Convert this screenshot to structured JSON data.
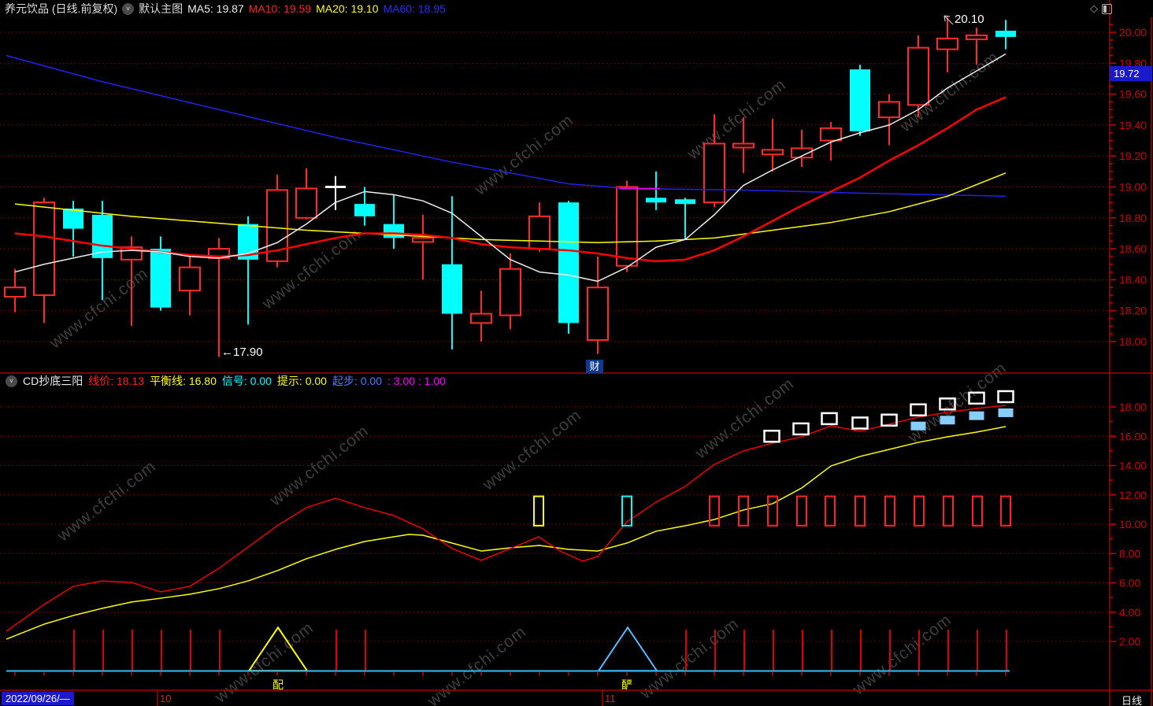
{
  "window": {
    "title": "养元饮品 (日线.前复权)",
    "overlay_label": "默认主图",
    "ma": [
      {
        "text": "MA5: 19.87",
        "color": "#eeeeee"
      },
      {
        "text": "MA10: 19.59",
        "color": "#ff2222"
      },
      {
        "text": "MA20: 19.10",
        "color": "#ffff00"
      },
      {
        "text": "MA60: 18.95",
        "color": "#2b2bff"
      }
    ],
    "icons": {
      "diamond": "◇",
      "chevron": "˅"
    }
  },
  "sub_header": {
    "indicator_name": "CD抄底三阳",
    "fields": [
      {
        "text": "线价: 18.13",
        "color": "#ff2222"
      },
      {
        "text": "平衡线: 16.80",
        "color": "#ffff00"
      },
      {
        "text": "信号: 0.00",
        "color": "#00ffff"
      },
      {
        "text": "提示: 0.00",
        "color": "#ffff00"
      },
      {
        "text": "起步: 0.00",
        "color": "#4d7dff"
      },
      {
        "text": ": 3.00 : 1.00",
        "color": "#ff00ff"
      }
    ]
  },
  "bottom_bar": {
    "date_label": "2022/09/26/—",
    "months": [
      {
        "label": "10",
        "x": 203
      },
      {
        "label": "11",
        "x": 768
      }
    ],
    "period_label": "日线"
  },
  "annotations": {
    "high_label": "20.10",
    "low_label": "←17.90",
    "fin_marker": "财",
    "signal_word_1": "配",
    "signal_word_2": "酽",
    "latest_price_tag": "19.72"
  },
  "watermark": "www.cfchi.com",
  "chart_data": {
    "type": "candlestick",
    "main": {
      "title": "养元饮品 日线 前复权",
      "ylim": [
        17.9,
        20.1
      ],
      "yticks": [
        20.0,
        19.8,
        19.6,
        19.4,
        19.2,
        19.0,
        18.8,
        18.6,
        18.4,
        18.2,
        18.0
      ],
      "colors": {
        "up": "#ff2a2a",
        "down": "#00ffff",
        "doji": "#ffffff",
        "ma5": "#eeeeee",
        "ma10": "#ff0000",
        "ma20": "#ffff00",
        "ma60": "#2222ee",
        "grid": "#8b0000",
        "axis_text": "#cc0000"
      },
      "candles": [
        [
          19,
          18.29,
          18.47,
          18.19,
          18.35,
          "r"
        ],
        [
          56,
          18.3,
          18.93,
          18.12,
          18.9,
          "r"
        ],
        [
          93,
          18.86,
          18.91,
          18.55,
          18.73,
          "c"
        ],
        [
          130,
          18.82,
          18.91,
          18.27,
          18.54,
          "c"
        ],
        [
          167,
          18.53,
          18.68,
          18.1,
          18.61,
          "r"
        ],
        [
          204,
          18.6,
          18.68,
          18.2,
          18.22,
          "c"
        ],
        [
          241,
          18.33,
          18.55,
          18.17,
          18.48,
          "r"
        ],
        [
          278,
          18.54,
          18.67,
          17.9,
          18.6,
          "r"
        ],
        [
          315,
          18.76,
          18.81,
          18.11,
          18.53,
          "c"
        ],
        [
          352,
          18.52,
          19.08,
          18.48,
          18.98,
          "r"
        ],
        [
          389,
          18.8,
          19.12,
          18.79,
          18.99,
          "r"
        ],
        [
          426,
          19.0,
          19.07,
          18.85,
          19.0,
          "w"
        ],
        [
          463,
          18.89,
          19.0,
          18.75,
          18.81,
          "c"
        ],
        [
          500,
          18.76,
          18.95,
          18.6,
          18.67,
          "c"
        ],
        [
          537,
          18.65,
          18.82,
          18.4,
          18.67,
          "r"
        ],
        [
          574,
          18.5,
          18.94,
          17.95,
          18.18,
          "c"
        ],
        [
          611,
          18.12,
          18.33,
          18.0,
          18.18,
          "r"
        ],
        [
          648,
          18.17,
          18.57,
          18.08,
          18.47,
          "r"
        ],
        [
          685,
          18.6,
          18.9,
          18.58,
          18.81,
          "r"
        ],
        [
          722,
          18.9,
          18.91,
          18.05,
          18.12,
          "c"
        ],
        [
          759,
          18.01,
          18.55,
          17.92,
          18.35,
          "r"
        ],
        [
          796,
          18.49,
          19.04,
          18.45,
          19.0,
          "r"
        ],
        [
          833,
          18.93,
          19.1,
          18.85,
          18.92,
          "c"
        ],
        [
          870,
          18.92,
          18.93,
          18.66,
          18.91,
          "c"
        ],
        [
          907,
          18.9,
          19.47,
          18.87,
          19.28,
          "r"
        ],
        [
          944,
          19.26,
          19.45,
          19.09,
          19.28,
          "r"
        ],
        [
          981,
          19.21,
          19.44,
          19.1,
          19.24,
          "r"
        ],
        [
          1018,
          19.19,
          19.37,
          19.13,
          19.25,
          "r"
        ],
        [
          1055,
          19.3,
          19.42,
          19.17,
          19.38,
          "r"
        ],
        [
          1092,
          19.76,
          19.79,
          19.33,
          19.36,
          "c"
        ],
        [
          1129,
          19.45,
          19.6,
          19.27,
          19.55,
          "r"
        ],
        [
          1166,
          19.53,
          19.98,
          19.45,
          19.9,
          "r"
        ],
        [
          1203,
          19.89,
          20.1,
          19.74,
          19.96,
          "r"
        ],
        [
          1240,
          19.96,
          20.03,
          19.79,
          19.98,
          "r"
        ],
        [
          1277,
          20.01,
          20.08,
          19.89,
          19.97,
          "c"
        ]
      ],
      "ma5": [
        18.45,
        18.5,
        18.54,
        18.58,
        18.59,
        18.58,
        18.55,
        18.54,
        18.57,
        18.64,
        18.76,
        18.9,
        18.97,
        18.95,
        18.91,
        18.83,
        18.68,
        18.53,
        18.45,
        18.43,
        18.39,
        18.48,
        18.61,
        18.66,
        18.82,
        19.01,
        19.11,
        19.2,
        19.29,
        19.35,
        19.4,
        19.5,
        19.64,
        19.75,
        19.86
      ],
      "ma10": [
        18.7,
        18.68,
        18.65,
        18.62,
        18.6,
        18.58,
        18.56,
        18.55,
        18.56,
        18.59,
        18.63,
        18.67,
        18.7,
        18.7,
        18.69,
        18.67,
        18.63,
        18.61,
        18.6,
        18.59,
        18.57,
        18.54,
        18.52,
        18.53,
        18.59,
        18.68,
        18.78,
        18.88,
        18.97,
        19.06,
        19.17,
        19.27,
        19.38,
        19.5,
        19.58
      ],
      "ma20": [
        [
          19,
          18.89
        ],
        [
          93,
          18.85
        ],
        [
          167,
          18.81
        ],
        [
          241,
          18.78
        ],
        [
          315,
          18.75
        ],
        [
          389,
          18.72
        ],
        [
          463,
          18.7
        ],
        [
          537,
          18.68
        ],
        [
          611,
          18.66
        ],
        [
          685,
          18.65
        ],
        [
          759,
          18.64
        ],
        [
          833,
          18.65
        ],
        [
          907,
          18.67
        ],
        [
          981,
          18.72
        ],
        [
          1055,
          18.77
        ],
        [
          1129,
          18.84
        ],
        [
          1203,
          18.94
        ],
        [
          1277,
          19.09
        ]
      ],
      "ma60": [
        [
          8,
          19.85
        ],
        [
          130,
          19.68
        ],
        [
          278,
          19.5
        ],
        [
          426,
          19.32
        ],
        [
          574,
          19.16
        ],
        [
          722,
          19.02
        ],
        [
          796,
          18.99
        ],
        [
          944,
          18.98
        ],
        [
          1092,
          18.96
        ],
        [
          1277,
          18.94
        ]
      ],
      "magenta_segment": [
        [
          786,
          18.99
        ],
        [
          838,
          18.99
        ]
      ],
      "high_point": {
        "x": 1203,
        "price": 20.1
      },
      "low_point": {
        "x": 278,
        "price": 17.9
      }
    },
    "indicator": {
      "name": "CD抄底三阳",
      "ylim": [
        0,
        19
      ],
      "yticks": [
        18.0,
        16.0,
        14.0,
        12.0,
        10.0,
        8.0,
        6.0,
        4.0,
        2.0
      ],
      "colors": {
        "line_price": "#ee0000",
        "balance": "#ffff00",
        "zero_line": "#33bbff",
        "white_square": "#ffffff",
        "blue_square": "#87CEFA",
        "comb": "#dd0000"
      },
      "line_price": [
        [
          8,
          2.7
        ],
        [
          56,
          4.52
        ],
        [
          93,
          5.76
        ],
        [
          130,
          6.13
        ],
        [
          167,
          6.03
        ],
        [
          204,
          5.38
        ],
        [
          241,
          5.76
        ],
        [
          278,
          6.99
        ],
        [
          315,
          8.44
        ],
        [
          352,
          9.89
        ],
        [
          389,
          11.13
        ],
        [
          426,
          11.77
        ],
        [
          463,
          11.13
        ],
        [
          500,
          10.59
        ],
        [
          537,
          9.68
        ],
        [
          574,
          8.34
        ],
        [
          611,
          7.53
        ],
        [
          648,
          8.34
        ],
        [
          684,
          9.14
        ],
        [
          711,
          8.17
        ],
        [
          740,
          7.48
        ],
        [
          759,
          7.8
        ],
        [
          796,
          10.16
        ],
        [
          833,
          11.5
        ],
        [
          870,
          12.58
        ],
        [
          907,
          14.08
        ],
        [
          944,
          15.0
        ],
        [
          981,
          15.53
        ],
        [
          1018,
          15.96
        ],
        [
          1055,
          16.71
        ],
        [
          1092,
          16.34
        ],
        [
          1129,
          16.82
        ],
        [
          1166,
          17.3
        ],
        [
          1203,
          17.63
        ],
        [
          1240,
          17.89
        ],
        [
          1277,
          18.11
        ]
      ],
      "balance_line": [
        [
          8,
          2.16
        ],
        [
          56,
          3.18
        ],
        [
          93,
          3.77
        ],
        [
          130,
          4.26
        ],
        [
          167,
          4.69
        ],
        [
          204,
          4.95
        ],
        [
          241,
          5.22
        ],
        [
          278,
          5.6
        ],
        [
          315,
          6.13
        ],
        [
          352,
          6.83
        ],
        [
          389,
          7.64
        ],
        [
          426,
          8.28
        ],
        [
          463,
          8.82
        ],
        [
          500,
          9.14
        ],
        [
          519,
          9.3
        ],
        [
          537,
          9.25
        ],
        [
          574,
          8.71
        ],
        [
          611,
          8.17
        ],
        [
          648,
          8.39
        ],
        [
          685,
          8.55
        ],
        [
          722,
          8.28
        ],
        [
          759,
          8.17
        ],
        [
          796,
          8.71
        ],
        [
          833,
          9.52
        ],
        [
          870,
          9.89
        ],
        [
          907,
          10.32
        ],
        [
          944,
          10.97
        ],
        [
          981,
          11.4
        ],
        [
          1018,
          12.47
        ],
        [
          1055,
          13.97
        ],
        [
          1092,
          14.62
        ],
        [
          1129,
          15.1
        ],
        [
          1166,
          15.58
        ],
        [
          1203,
          15.96
        ],
        [
          1240,
          16.28
        ],
        [
          1277,
          16.66
        ]
      ],
      "hollow_bars": {
        "v0": 9.9,
        "v1": 11.9,
        "items": [
          {
            "x": 684,
            "color": "#ffff00"
          },
          {
            "x": 796,
            "color": "#00ffff"
          },
          {
            "x": 907,
            "color": "#ff2222"
          },
          {
            "x": 944,
            "color": "#ff2222"
          },
          {
            "x": 981,
            "color": "#ff2222"
          },
          {
            "x": 1018,
            "color": "#ff2222"
          },
          {
            "x": 1054,
            "color": "#ff2222"
          },
          {
            "x": 1092,
            "color": "#ff2222"
          },
          {
            "x": 1130,
            "color": "#ff2222"
          },
          {
            "x": 1167,
            "color": "#ff2222"
          },
          {
            "x": 1204,
            "color": "#ff2222"
          },
          {
            "x": 1241,
            "color": "#ff2222"
          },
          {
            "x": 1277,
            "color": "#ff2222"
          }
        ]
      },
      "white_squares": [
        [
          980,
          16.0
        ],
        [
          1017,
          16.5
        ],
        [
          1053,
          17.2
        ],
        [
          1092,
          16.9
        ],
        [
          1129,
          17.1
        ],
        [
          1166,
          17.8
        ],
        [
          1203,
          18.2
        ],
        [
          1240,
          18.6
        ],
        [
          1277,
          18.7
        ]
      ],
      "blue_squares": [
        [
          1166,
          16.7
        ],
        [
          1203,
          17.1
        ],
        [
          1240,
          17.4
        ],
        [
          1277,
          17.6
        ]
      ],
      "comb_x": [
        94,
        131,
        168,
        205,
        242,
        279,
        427,
        464,
        871,
        908,
        945,
        982,
        1019,
        1056,
        1093,
        1130,
        1167,
        1204,
        1241,
        1278
      ],
      "comb_top": 2.8,
      "triangles": [
        {
          "x": 353,
          "color": "#ffff00"
        },
        {
          "x": 797,
          "color": "#55bbff"
        }
      ],
      "triangle_apex": 2.95,
      "triangle_half_width": 37
    }
  }
}
